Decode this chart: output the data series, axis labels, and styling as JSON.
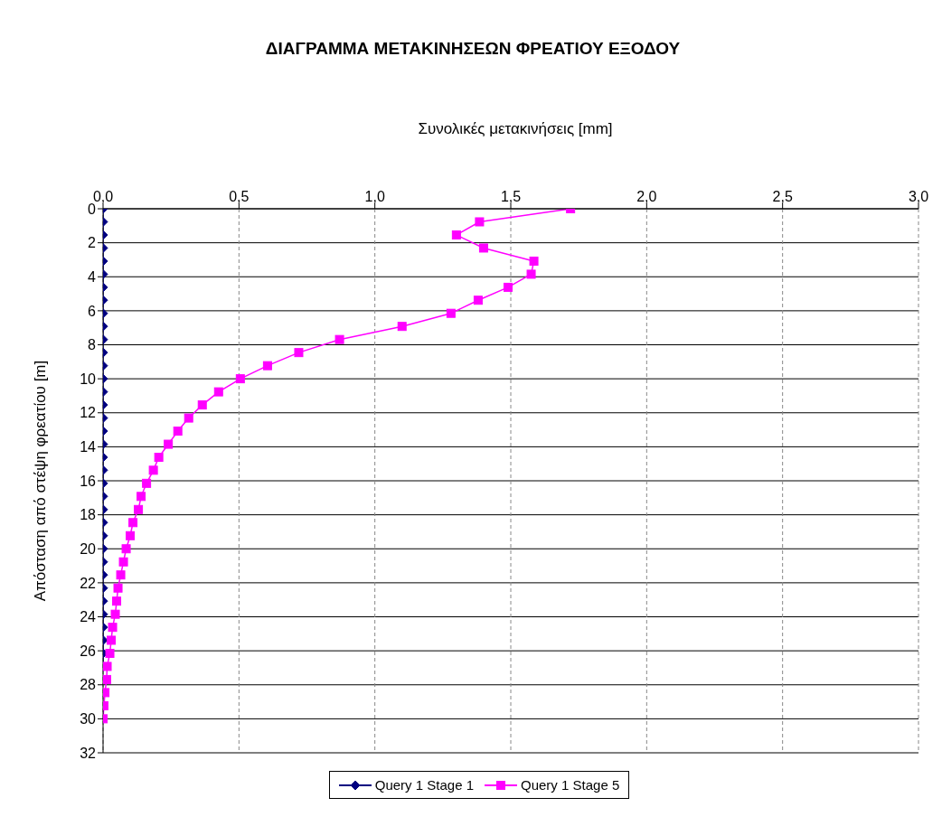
{
  "chart_data": {
    "type": "line",
    "title": "ΔΙΑΓΡΑΜΜΑ ΜΕΤΑΚΙΝΗΣΕΩΝ ΦΡΕΑΤΙΟΥ ΕΞΟΔΟΥ",
    "xlabel": "Συνολικές μετακινήσεις [mm]",
    "ylabel": "Απόσταση από στέψη φρεατίου [m]",
    "xlim": [
      0,
      3
    ],
    "xticks": [
      {
        "value": 0,
        "label": "0,0"
      },
      {
        "value": 0.5,
        "label": "0,5"
      },
      {
        "value": 1,
        "label": "1,0"
      },
      {
        "value": 1.5,
        "label": "1,5"
      },
      {
        "value": 2,
        "label": "2,0"
      },
      {
        "value": 2.5,
        "label": "2,5"
      },
      {
        "value": 3,
        "label": "3,0"
      }
    ],
    "ylim": [
      32,
      0
    ],
    "yticks": [
      0,
      2,
      4,
      6,
      8,
      10,
      12,
      14,
      16,
      18,
      20,
      22,
      24,
      26,
      28,
      30,
      32
    ],
    "grid": true,
    "legend": "bottom",
    "line_style": "solid",
    "series": [
      {
        "name": "Query 1 Stage 1",
        "color": "#000080",
        "marker": "diamond",
        "x": [
          0,
          0,
          0,
          0,
          0,
          0,
          0,
          0,
          0,
          0,
          0,
          0,
          0,
          0,
          0,
          0,
          0,
          0,
          0,
          0,
          0,
          0,
          0,
          0,
          0,
          0,
          0,
          0,
          0,
          0,
          0,
          0,
          0,
          0,
          0,
          0
        ],
        "values": [
          0,
          0.77,
          1.54,
          2.31,
          3.08,
          3.85,
          4.62,
          5.38,
          6.15,
          6.92,
          7.69,
          8.46,
          9.23,
          10,
          10.77,
          11.54,
          12.31,
          13.08,
          13.85,
          14.62,
          15.38,
          16.15,
          16.92,
          17.69,
          18.46,
          19.23,
          20,
          20.77,
          21.54,
          22.31,
          23.08,
          23.85,
          24.62,
          25.38,
          26.15,
          26.92
        ]
      },
      {
        "name": "Query 1 Stage 5",
        "color": "#ff00ff",
        "marker": "square",
        "x": [
          1.72,
          1.385,
          1.3,
          1.4,
          1.585,
          1.575,
          1.49,
          1.38,
          1.28,
          1.1,
          0.87,
          0.72,
          0.605,
          0.505,
          0.425,
          0.365,
          0.315,
          0.275,
          0.24,
          0.205,
          0.185,
          0.16,
          0.14,
          0.13,
          0.11,
          0.1,
          0.085,
          0.075,
          0.065,
          0.055,
          0.05,
          0.045,
          0.035,
          0.03,
          0.025,
          0.015,
          0.013,
          0.007,
          0.003,
          0
        ],
        "values": [
          0,
          0.77,
          1.54,
          2.31,
          3.08,
          3.85,
          4.62,
          5.38,
          6.15,
          6.92,
          7.69,
          8.46,
          9.23,
          10,
          10.77,
          11.54,
          12.31,
          13.08,
          13.85,
          14.62,
          15.38,
          16.15,
          16.92,
          17.69,
          18.46,
          19.23,
          20,
          20.77,
          21.54,
          22.31,
          23.08,
          23.85,
          24.62,
          25.38,
          26.15,
          26.92,
          27.69,
          28.46,
          29.23,
          30
        ]
      }
    ]
  }
}
